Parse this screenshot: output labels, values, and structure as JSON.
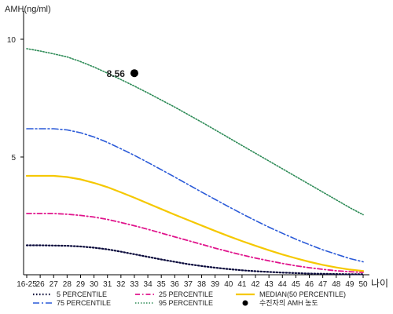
{
  "chart_data": {
    "type": "line",
    "ylabel": "AMH(ng/ml)",
    "xlabel": "나이",
    "ylim": [
      0,
      11
    ],
    "yticks": [
      5,
      10
    ],
    "grid": false,
    "legend_position": "bottom",
    "x": [
      "16-25",
      "26",
      "27",
      "28",
      "29",
      "30",
      "31",
      "32",
      "33",
      "34",
      "35",
      "36",
      "37",
      "38",
      "39",
      "40",
      "41",
      "42",
      "43",
      "44",
      "45",
      "46",
      "47",
      "48",
      "49",
      "50"
    ],
    "series": [
      {
        "name": "5 PERCENTILE",
        "color": "#0a0a3c",
        "dash": "1.5 2.5",
        "width": 2.2,
        "values": [
          1.25,
          1.25,
          1.24,
          1.23,
          1.2,
          1.15,
          1.08,
          0.98,
          0.87,
          0.76,
          0.65,
          0.55,
          0.45,
          0.37,
          0.3,
          0.24,
          0.19,
          0.15,
          0.12,
          0.09,
          0.07,
          0.05,
          0.04,
          0.03,
          0.02,
          0.02
        ]
      },
      {
        "name": "25 PERCENTILE",
        "color": "#e0148c",
        "dash": "6 3 1.5 3",
        "width": 1.8,
        "values": [
          2.6,
          2.6,
          2.6,
          2.57,
          2.52,
          2.45,
          2.35,
          2.22,
          2.08,
          1.93,
          1.77,
          1.61,
          1.45,
          1.29,
          1.13,
          0.98,
          0.84,
          0.71,
          0.59,
          0.48,
          0.38,
          0.3,
          0.23,
          0.17,
          0.13,
          0.1
        ]
      },
      {
        "name": "MEDIAN(50 PERCENTILE)",
        "color": "#f5c800",
        "dash": "",
        "width": 2.2,
        "values": [
          4.2,
          4.2,
          4.2,
          4.15,
          4.05,
          3.9,
          3.72,
          3.5,
          3.27,
          3.03,
          2.79,
          2.55,
          2.32,
          2.09,
          1.86,
          1.64,
          1.43,
          1.23,
          1.04,
          0.86,
          0.7,
          0.55,
          0.42,
          0.31,
          0.22,
          0.16
        ]
      },
      {
        "name": "75 PERCENTILE",
        "color": "#2a5ad8",
        "dash": "8 3 2 3",
        "width": 1.6,
        "values": [
          6.2,
          6.2,
          6.2,
          6.15,
          6.03,
          5.85,
          5.62,
          5.35,
          5.07,
          4.77,
          4.46,
          4.15,
          3.83,
          3.51,
          3.2,
          2.89,
          2.59,
          2.3,
          2.02,
          1.76,
          1.51,
          1.28,
          1.06,
          0.87,
          0.69,
          0.55
        ]
      },
      {
        "name": "95 PERCENTILE",
        "color": "#2e8b57",
        "dash": "1.5 2",
        "width": 1.6,
        "values": [
          9.6,
          9.5,
          9.38,
          9.25,
          9.05,
          8.82,
          8.56,
          8.29,
          8.01,
          7.72,
          7.42,
          7.12,
          6.8,
          6.48,
          6.15,
          5.82,
          5.49,
          5.16,
          4.83,
          4.5,
          4.17,
          3.84,
          3.51,
          3.18,
          2.85,
          2.55
        ]
      }
    ],
    "highlight": {
      "legend": "수진자의 AMH 농도",
      "x": "33",
      "y": 8.56,
      "label": "8.56",
      "color": "#000000"
    }
  }
}
